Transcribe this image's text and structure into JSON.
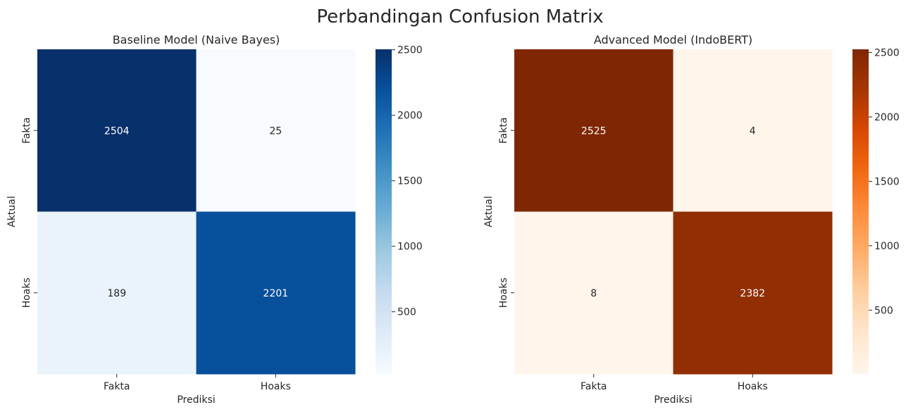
{
  "chart_data": {
    "type": "heatmap",
    "title": "Perbandingan Confusion Matrix",
    "panels": [
      {
        "title": "Baseline Model (Naive Bayes)",
        "xlabel": "Prediksi",
        "ylabel": "Aktual",
        "x_categories": [
          "Fakta",
          "Hoaks"
        ],
        "y_categories": [
          "Fakta",
          "Hoaks"
        ],
        "matrix": [
          [
            2504,
            25
          ],
          [
            189,
            2201
          ]
        ],
        "colormap": "Blues",
        "vmin": 25,
        "vmax": 2504,
        "colorbar_ticks": [
          500,
          1000,
          1500,
          2000,
          2500
        ]
      },
      {
        "title": "Advanced Model (IndoBERT)",
        "xlabel": "Prediksi",
        "ylabel": "Aktual",
        "x_categories": [
          "Fakta",
          "Hoaks"
        ],
        "y_categories": [
          "Fakta",
          "Hoaks"
        ],
        "matrix": [
          [
            2525,
            4
          ],
          [
            8,
            2382
          ]
        ],
        "colormap": "Oranges",
        "vmin": 4,
        "vmax": 2525,
        "colorbar_ticks": [
          500,
          1000,
          1500,
          2000,
          2500
        ]
      }
    ]
  }
}
